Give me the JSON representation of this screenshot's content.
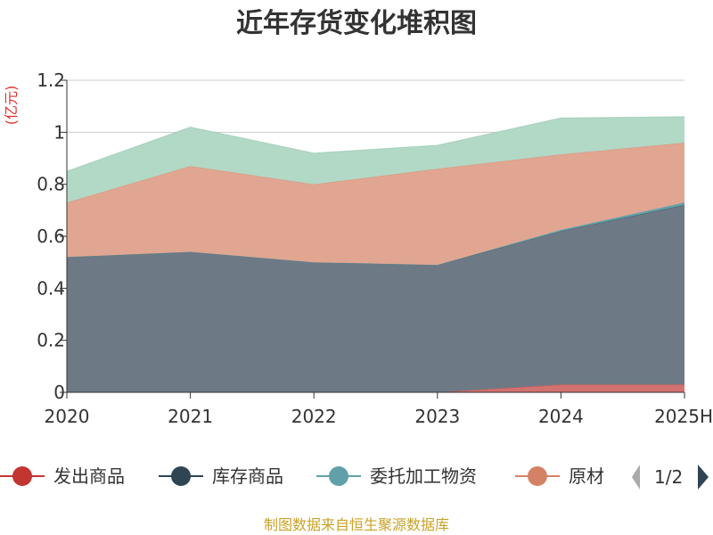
{
  "chart_data": {
    "type": "area",
    "stacked": true,
    "title": "近年存货变化堆积图",
    "unit_label": "(亿元)",
    "categories": [
      "2020",
      "2021",
      "2022",
      "2023",
      "2024",
      "2025H"
    ],
    "ylim": [
      0,
      1.2
    ],
    "yticks": [
      "0",
      "0.2",
      "0.4",
      "0.6",
      "0.8",
      "1",
      "1.2"
    ],
    "grid": true,
    "legend_position": "bottom",
    "series": [
      {
        "name": "发出商品",
        "color": "#c23531",
        "fill": "#d27270",
        "values": [
          0,
          0,
          0,
          0,
          0.03,
          0.03
        ]
      },
      {
        "name": "库存商品",
        "color": "#2f4554",
        "fill": "#6d7a85",
        "values": [
          0.52,
          0.54,
          0.5,
          0.49,
          0.59,
          0.69
        ]
      },
      {
        "name": "委托加工物资",
        "color": "#61a0a8",
        "fill": "#61a0a8",
        "values": [
          0,
          0,
          0,
          0,
          0.005,
          0.01
        ]
      },
      {
        "name": "原材料",
        "color": "#d48265",
        "fill": "#e0a691",
        "values": [
          0.21,
          0.33,
          0.3,
          0.37,
          0.29,
          0.23
        ]
      },
      {
        "name": "",
        "color": "#91c7ae",
        "fill": "#b2d8c6",
        "values": [
          0.12,
          0.15,
          0.12,
          0.09,
          0.14,
          0.1
        ]
      }
    ]
  },
  "legend": {
    "visible": [
      {
        "label": "发出商品",
        "color": "#c23531"
      },
      {
        "label": "库存商品",
        "color": "#2f4554"
      },
      {
        "label": "委托加工物资",
        "color": "#61a0a8"
      },
      {
        "label": "原材",
        "color": "#d48265"
      }
    ],
    "page_indicator": "1/2"
  },
  "source_text": "制图数据来自恒生聚源数据库"
}
